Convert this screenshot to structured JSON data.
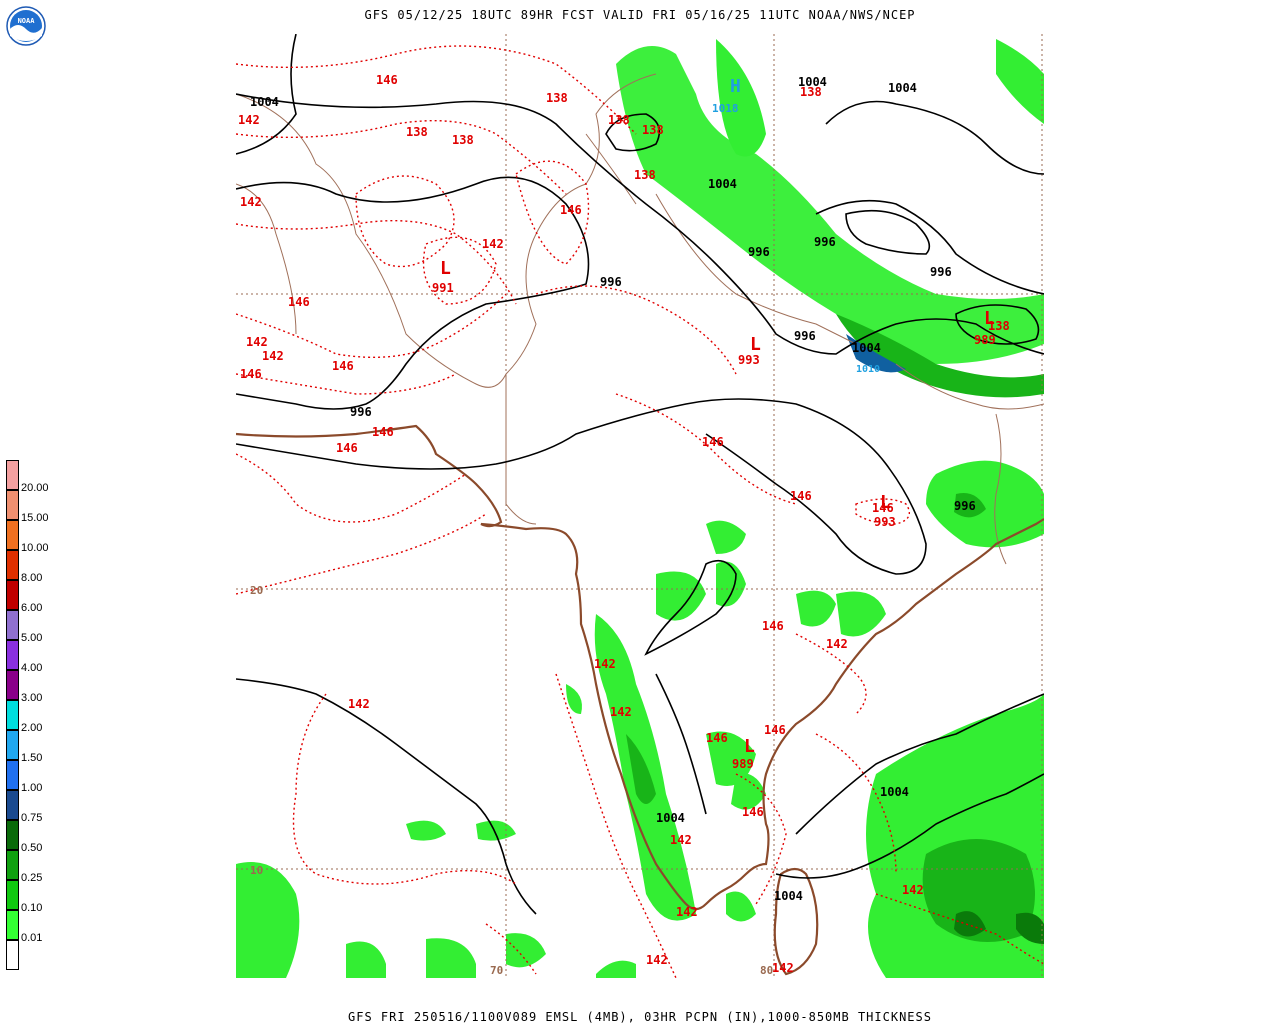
{
  "header": {
    "title": "GFS 05/12/25 18UTC 89HR FCST VALID FRI 05/16/25 11UTC NOAA/NWS/NCEP"
  },
  "footer": {
    "text": "GFS FRI 250516/1100V089 EMSL (4MB), 03HR PCPN (IN),1000-850MB THICKNESS"
  },
  "logo": {
    "text": "NOAA"
  },
  "colors": {
    "pressure_contour": "#000000",
    "thickness_contour": "#e00000",
    "coastline": "#8b4a2b",
    "border": "#9a6a50",
    "precip_light": "#33e633",
    "precip_medium": "#18b418",
    "precip_heavy": "#0a7a0a"
  },
  "legend": {
    "items": [
      {
        "label": "20.00",
        "color": "#f4a0a0"
      },
      {
        "label": "15.00",
        "color": "#f09070"
      },
      {
        "label": "10.00",
        "color": "#f07020"
      },
      {
        "label": "8.00",
        "color": "#e03000"
      },
      {
        "label": "6.00",
        "color": "#c00000"
      },
      {
        "label": "5.00",
        "color": "#9070d0"
      },
      {
        "label": "4.00",
        "color": "#8a30e0"
      },
      {
        "label": "3.00",
        "color": "#8a008a"
      },
      {
        "label": "2.00",
        "color": "#00dede"
      },
      {
        "label": "1.50",
        "color": "#20a8f0"
      },
      {
        "label": "1.00",
        "color": "#2070f0"
      },
      {
        "label": "0.75",
        "color": "#1a4a90"
      },
      {
        "label": "0.50",
        "color": "#0a6a0a"
      },
      {
        "label": "0.25",
        "color": "#10a010"
      },
      {
        "label": "0.10",
        "color": "#10c810"
      },
      {
        "label": "0.01",
        "color": "#33ff33"
      }
    ],
    "blank_color": "#ffffff"
  },
  "map": {
    "grid_labels": {
      "lat_20": "20",
      "lat_10": "10",
      "lon_70": "70",
      "lon_80": "80"
    },
    "pressure_labels": [
      "1004",
      "1004",
      "1004",
      "996",
      "996",
      "996",
      "996",
      "996",
      "996",
      "996",
      "1004",
      "1004",
      "1004",
      "991",
      "993",
      "993",
      "989",
      "989",
      "996"
    ],
    "thickness_labels": [
      "146",
      "142",
      "138",
      "138",
      "138",
      "138",
      "138",
      "138",
      "138",
      "146",
      "142",
      "146",
      "146",
      "142",
      "146",
      "146",
      "146",
      "146",
      "146",
      "142",
      "146",
      "142",
      "142",
      "146",
      "146",
      "146",
      "142",
      "142",
      "142",
      "142",
      "138",
      "142",
      "142"
    ],
    "highs": [
      {
        "symbol": "H",
        "value": "1018"
      }
    ],
    "blue_labels": [
      "1010"
    ],
    "lows_symbol": "L"
  }
}
